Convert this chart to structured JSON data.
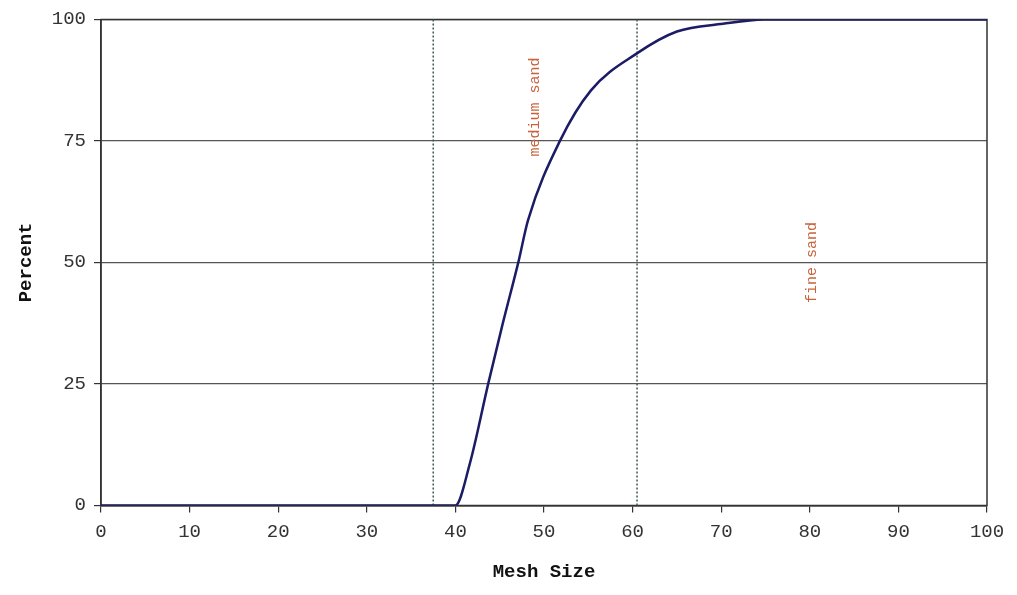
{
  "chart_data": {
    "type": "line",
    "xlabel": "Mesh Size",
    "ylabel": "Percent",
    "x": [
      0,
      10,
      20,
      30,
      40,
      41.6,
      43.7,
      45.3,
      47.1,
      48.2,
      51.8,
      55.3,
      60.4,
      65,
      70.2,
      75,
      80,
      90,
      100
    ],
    "series": [
      {
        "color": "#1c1c66",
        "values": [
          0,
          0,
          0,
          0,
          0,
          8.4,
          25,
          37.1,
          50,
          58.7,
          75,
          85.4,
          92.9,
          97.5,
          99.1,
          100,
          100,
          100,
          100
        ]
      }
    ],
    "xlim": [
      0,
      100
    ],
    "xticks": [
      0,
      10,
      20,
      30,
      40,
      50,
      60,
      70,
      80,
      90,
      100
    ],
    "ylim": [
      0,
      100
    ],
    "yticks": [
      0,
      25,
      50,
      75,
      100
    ],
    "grid": "y",
    "legend": false,
    "marker": "none",
    "line_style": "solid",
    "ref_lines": [
      {
        "axis": "x",
        "value": 37.5,
        "color": "#3a5a4a",
        "line_style": "dotted"
      },
      {
        "axis": "x",
        "value": 60.5,
        "color": "#3a5a4a",
        "line_style": "dotted"
      }
    ],
    "annotations": [
      "medium sand",
      "fine sand"
    ]
  }
}
